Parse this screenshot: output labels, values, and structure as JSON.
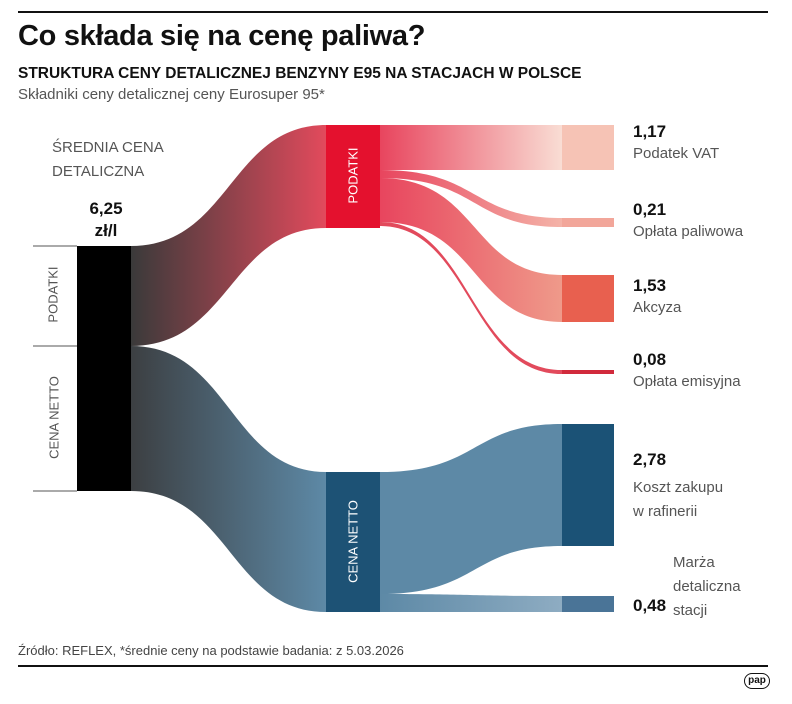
{
  "header": {
    "title": "Co składa się na cenę paliwa?",
    "subtitle": "STRUKTURA CENY DETALICZNEJ BENZYNY E95 NA STACJACH W POLSCE",
    "description": "Składniki ceny detalicznej ceny Eurosuper 95*"
  },
  "source": {
    "label_line1": "ŚREDNIA CENA",
    "label_line2": "DETALICZNA",
    "value_line1": "6,25",
    "value_line2": "zł/l",
    "segments": [
      "PODATKI",
      "CENA NETTO"
    ],
    "color": "#000000"
  },
  "groups": [
    {
      "label": "PODATKI",
      "value": 2.99,
      "color": "#e4112e"
    },
    {
      "label": "CENA NETTO",
      "value": 3.26,
      "color": "#1d5275"
    }
  ],
  "components": [
    {
      "value": "1,17",
      "label": "Podatek VAT",
      "group": "PODATKI",
      "color": "#f6c3b5"
    },
    {
      "value": "0,21",
      "label": "Opłata paliwowa",
      "group": "PODATKI",
      "color": "#f2a69a"
    },
    {
      "value": "1,53",
      "label": "Akcyza",
      "group": "PODATKI",
      "color": "#e8604f"
    },
    {
      "value": "0,08",
      "label": "Opłata emisyjna",
      "group": "PODATKI",
      "color": "#d12a3c"
    },
    {
      "value": "2,78",
      "label_line1": "Koszt zakupu",
      "label_line2": "w rafinerii",
      "group": "CENA NETTO",
      "color": "#1b5276"
    },
    {
      "value": "0,48",
      "label_line1": "Marża",
      "label_line2": "detaliczna",
      "label_line3": "stacji",
      "group": "CENA NETTO",
      "color": "#4a7497"
    }
  ],
  "footer": {
    "source": "Źródło: REFLEX, *średnie ceny na podstawie badania: z 5.03.2026",
    "logo": "pap"
  }
}
